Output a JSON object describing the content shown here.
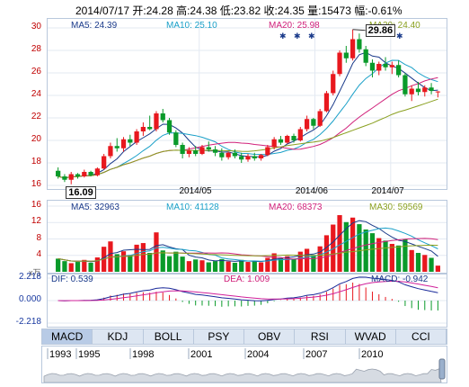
{
  "header": {
    "text": "2014/07/17 开:24.28  高:24.38  低:23.82  收:24.35  量:15473  幅:-0.61%"
  },
  "price_panel": {
    "legend": [
      {
        "label": "MA5: 24.39",
        "color": "#1a3a8a"
      },
      {
        "label": "MA10: 25.10",
        "color": "#1aa0c8"
      },
      {
        "label": "MA20: 25.98",
        "color": "#d0207a"
      },
      {
        "label": "MA30: 24.40",
        "color": "#8aa020"
      }
    ],
    "high_label": "29.86",
    "low_label": "16.09",
    "x_ticks": [
      "2014/05",
      "2014/06",
      "2014/07"
    ]
  },
  "volume_panel": {
    "legend": [
      {
        "label": "MA5: 32963",
        "color": "#1a3a8a"
      },
      {
        "label": "MA10: 41128",
        "color": "#1aa0c8"
      },
      {
        "label": "MA20: 68373",
        "color": "#d0207a"
      },
      {
        "label": "MA30: 59569",
        "color": "#8aa020"
      }
    ],
    "unit": "x万"
  },
  "macd_panel": {
    "dif": "DIF: 0.539",
    "dea": "DEA: 1.009",
    "macd": "MACD: -0.942"
  },
  "tabs": [
    "MACD",
    "KDJ",
    "BOLL",
    "PSY",
    "OBV",
    "RSI",
    "WVAD",
    "CCI"
  ],
  "timeline": {
    "years": [
      "1993",
      "1995",
      "1998",
      "2001",
      "2004",
      "2007",
      "2010"
    ]
  },
  "chart_data": [
    {
      "type": "candlestick",
      "title": "",
      "ylim": [
        16,
        30
      ],
      "y_ticks": [
        16,
        18,
        20,
        22,
        24,
        26,
        28,
        30
      ],
      "x_ticks": [
        "2014/05",
        "2014/06",
        "2014/07"
      ],
      "ohlc": [
        [
          17.3,
          17.6,
          16.6,
          16.8
        ],
        [
          16.8,
          17.0,
          16.3,
          16.5
        ],
        [
          16.5,
          17.2,
          16.1,
          17.0
        ],
        [
          17.0,
          17.1,
          16.6,
          16.8
        ],
        [
          16.8,
          17.4,
          16.7,
          17.2
        ],
        [
          17.2,
          17.3,
          16.8,
          16.9
        ],
        [
          16.9,
          17.6,
          16.8,
          17.5
        ],
        [
          17.5,
          18.8,
          17.4,
          18.6
        ],
        [
          18.6,
          19.8,
          18.4,
          19.5
        ],
        [
          19.5,
          20.2,
          19.0,
          19.3
        ],
        [
          19.3,
          20.3,
          19.0,
          20.1
        ],
        [
          20.1,
          20.5,
          19.5,
          19.8
        ],
        [
          19.8,
          21.0,
          19.6,
          20.8
        ],
        [
          20.8,
          21.6,
          20.4,
          21.2
        ],
        [
          21.2,
          22.2,
          20.9,
          21.0
        ],
        [
          21.0,
          22.6,
          20.8,
          22.4
        ],
        [
          22.4,
          22.8,
          21.6,
          21.8
        ],
        [
          21.8,
          22.0,
          20.5,
          20.7
        ],
        [
          20.7,
          20.9,
          19.4,
          19.6
        ],
        [
          19.6,
          19.8,
          18.4,
          18.8
        ],
        [
          18.8,
          19.4,
          18.5,
          19.1
        ],
        [
          19.1,
          19.5,
          18.6,
          18.8
        ],
        [
          18.8,
          19.6,
          18.7,
          19.4
        ],
        [
          19.4,
          19.9,
          19.0,
          19.2
        ],
        [
          19.2,
          19.5,
          18.6,
          18.9
        ],
        [
          18.9,
          19.3,
          18.2,
          18.5
        ],
        [
          18.5,
          19.0,
          18.3,
          18.9
        ],
        [
          18.9,
          19.2,
          18.4,
          18.6
        ],
        [
          18.6,
          18.9,
          18.0,
          18.3
        ],
        [
          18.3,
          18.8,
          18.1,
          18.6
        ],
        [
          18.6,
          18.9,
          18.2,
          18.4
        ],
        [
          18.4,
          18.8,
          18.2,
          18.7
        ],
        [
          18.7,
          19.6,
          18.6,
          19.4
        ],
        [
          19.4,
          20.3,
          19.2,
          20.1
        ],
        [
          20.1,
          20.4,
          19.6,
          19.8
        ],
        [
          19.8,
          20.5,
          19.7,
          20.4
        ],
        [
          20.4,
          20.6,
          19.8,
          20.0
        ],
        [
          20.0,
          21.2,
          19.9,
          21.0
        ],
        [
          21.0,
          22.2,
          20.8,
          21.9
        ],
        [
          21.9,
          22.0,
          21.0,
          21.3
        ],
        [
          21.3,
          22.8,
          21.2,
          22.6
        ],
        [
          22.6,
          24.4,
          22.5,
          24.2
        ],
        [
          24.2,
          26.2,
          24.0,
          25.9
        ],
        [
          25.9,
          28.0,
          25.7,
          27.8
        ],
        [
          27.8,
          28.4,
          26.9,
          27.3
        ],
        [
          27.3,
          29.86,
          27.1,
          29.0
        ],
        [
          29.0,
          29.5,
          27.8,
          28.1
        ],
        [
          28.1,
          28.4,
          26.6,
          26.9
        ],
        [
          26.9,
          27.2,
          25.6,
          26.2
        ],
        [
          26.2,
          27.0,
          25.8,
          26.8
        ],
        [
          26.8,
          27.4,
          26.2,
          26.5
        ],
        [
          26.5,
          27.0,
          25.9,
          26.7
        ],
        [
          26.7,
          27.1,
          25.6,
          25.8
        ],
        [
          25.8,
          26.0,
          23.9,
          24.1
        ],
        [
          24.1,
          24.9,
          23.5,
          24.6
        ],
        [
          24.6,
          25.2,
          24.0,
          24.3
        ],
        [
          24.3,
          24.9,
          23.9,
          24.7
        ],
        [
          24.7,
          25.1,
          24.1,
          24.4
        ],
        [
          24.28,
          24.38,
          23.82,
          24.35
        ]
      ],
      "high": 29.86,
      "low": 16.09
    },
    {
      "type": "bar",
      "title": "",
      "ylim": [
        0,
        16
      ],
      "y_ticks": [
        4,
        8,
        12,
        16
      ],
      "values": [
        3.2,
        2.6,
        2.1,
        2.4,
        2.9,
        2.2,
        3.5,
        6.1,
        7.4,
        4.3,
        5.0,
        4.1,
        6.6,
        7.0,
        4.6,
        9.6,
        5.2,
        3.8,
        4.9,
        3.7,
        2.6,
        3.0,
        2.8,
        2.3,
        2.6,
        3.1,
        2.5,
        2.2,
        2.9,
        2.4,
        2.7,
        2.3,
        3.4,
        4.5,
        3.3,
        3.8,
        3.2,
        4.9,
        5.6,
        4.1,
        6.2,
        8.9,
        11.5,
        13.8,
        12.1,
        13.2,
        11.6,
        10.3,
        9.4,
        8.2,
        7.6,
        6.8,
        6.4,
        7.9,
        5.3,
        4.6,
        4.1,
        3.4,
        1.5
      ]
    },
    {
      "type": "bar",
      "title": "",
      "ylim": [
        -2.218,
        2.218
      ],
      "y_ticks": [
        2.218,
        0.0,
        -2.218
      ]
    }
  ]
}
